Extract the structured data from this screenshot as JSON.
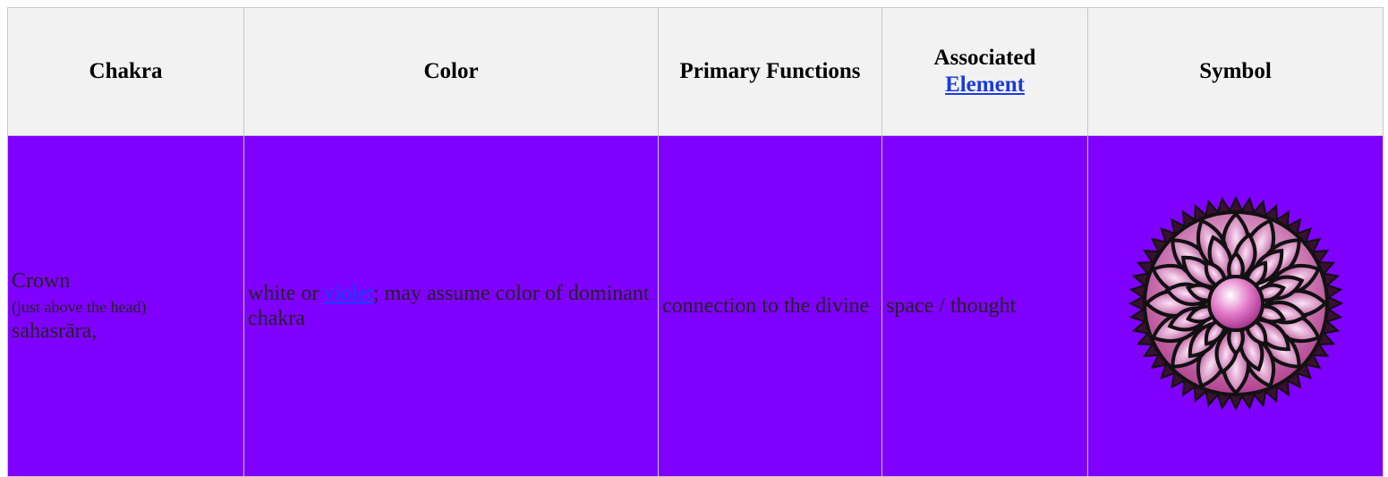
{
  "table": {
    "headers": [
      "Chakra",
      "Color",
      "Primary Functions",
      {
        "text": "Associated",
        "link": "Element"
      },
      "Symbol"
    ],
    "rows": [
      {
        "chakra": {
          "name": "Crown",
          "location": "(just above the head)",
          "sanskrit": "sahasrāra,"
        },
        "color": {
          "before": "white or",
          "link": "violet",
          "after": "; may assume color of dominant chakra"
        },
        "functions": "connection to the divine",
        "element": "space / thought"
      }
    ]
  }
}
